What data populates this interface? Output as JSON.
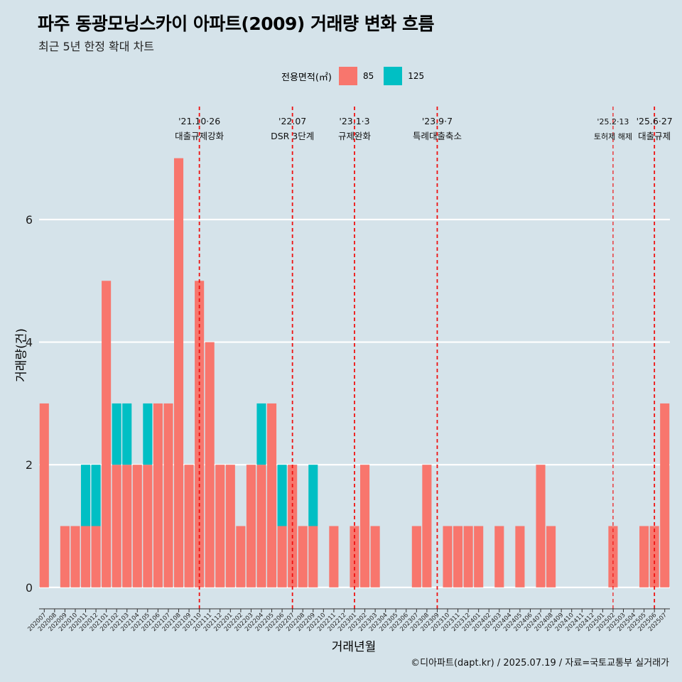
{
  "header": {
    "title": "파주 동광모닝스카이 아파트(2009) 거래량 변화 흐름",
    "subtitle": "최근 5년 한정 확대 차트"
  },
  "legend": {
    "title": "전용면적(㎡)",
    "items": [
      {
        "label": "85",
        "color": "#F8766D"
      },
      {
        "label": "125",
        "color": "#00BFC4"
      }
    ]
  },
  "caption": "©디아파트(dapt.kr) / 2025.07.19 / 자료=국토교통부 실거래가",
  "chart_data": {
    "type": "bar",
    "stacked": true,
    "xlabel": "거래년월",
    "ylabel": "거래량(건)",
    "ylim": [
      -0.35,
      7.9
    ],
    "yticks": [
      0,
      2,
      4,
      6
    ],
    "grid": "horizontal major only",
    "legend_position": "top",
    "categories": [
      "202007",
      "202008",
      "202009",
      "202010",
      "202011",
      "202012",
      "202101",
      "202102",
      "202103",
      "202104",
      "202105",
      "202106",
      "202107",
      "202108",
      "202109",
      "202110",
      "202111",
      "202112",
      "202201",
      "202202",
      "202203",
      "202204",
      "202205",
      "202206",
      "202207",
      "202208",
      "202209",
      "202210",
      "202211",
      "202212",
      "202301",
      "202302",
      "202303",
      "202304",
      "202305",
      "202306",
      "202307",
      "202308",
      "202309",
      "202310",
      "202311",
      "202312",
      "202401",
      "202402",
      "202403",
      "202404",
      "202405",
      "202406",
      "202407",
      "202408",
      "202409",
      "202410",
      "202411",
      "202412",
      "202501",
      "202502",
      "202503",
      "202504",
      "202505",
      "202506",
      "202507"
    ],
    "series": [
      {
        "name": "85",
        "color": "#F8766D",
        "values": [
          3,
          0,
          1,
          1,
          1,
          1,
          5,
          2,
          2,
          2,
          2,
          3,
          3,
          7,
          2,
          5,
          4,
          2,
          2,
          1,
          2,
          2,
          3,
          1,
          2,
          1,
          1,
          0,
          1,
          0,
          1,
          2,
          1,
          0,
          0,
          0,
          1,
          2,
          0,
          1,
          1,
          1,
          1,
          0,
          1,
          0,
          1,
          0,
          2,
          1,
          0,
          0,
          0,
          0,
          0,
          1,
          0,
          0,
          1,
          1,
          3
        ]
      },
      {
        "name": "125",
        "color": "#00BFC4",
        "values": [
          0,
          0,
          0,
          0,
          1,
          1,
          0,
          1,
          1,
          0,
          1,
          0,
          0,
          0,
          0,
          0,
          0,
          0,
          0,
          0,
          0,
          1,
          0,
          1,
          0,
          0,
          1,
          0,
          0,
          0,
          0,
          0,
          0,
          0,
          0,
          0,
          0,
          0,
          0,
          0,
          0,
          0,
          0,
          0,
          0,
          0,
          0,
          0,
          0,
          0,
          0,
          0,
          0,
          0,
          0,
          0,
          0,
          0,
          0,
          0,
          0
        ]
      }
    ],
    "annotations": [
      {
        "at": "202110",
        "date": "'21.10·26",
        "label": "대출규제강화"
      },
      {
        "at": "202207",
        "date": "'22.07",
        "label": "DSR 3단계"
      },
      {
        "at": "202301",
        "date": "'23.1·3",
        "label": "규제완화"
      },
      {
        "at": "202309",
        "date": "'23.9·7",
        "label": "특례대출축소"
      },
      {
        "at": "202502",
        "date": "'25.2·13",
        "label": "토허제 해제"
      },
      {
        "at": "202506",
        "date": "'25.6·27",
        "label": "대출규제"
      }
    ]
  }
}
